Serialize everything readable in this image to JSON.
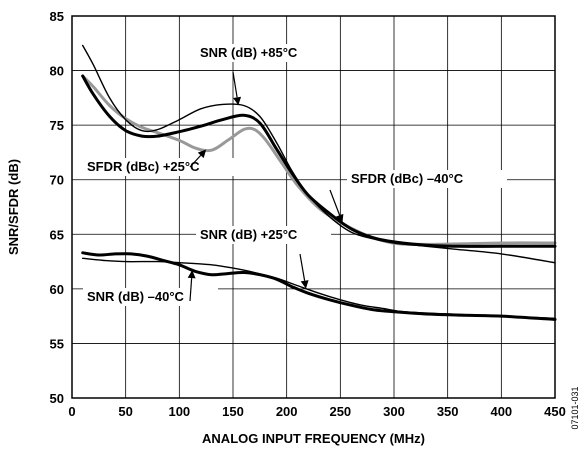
{
  "chart_data": {
    "type": "line",
    "xlabel": "ANALOG INPUT FREQUENCY (MHz)",
    "ylabel": "SNR/SFDR (dB)",
    "xlim": [
      0,
      450
    ],
    "ylim": [
      50,
      85
    ],
    "xticks": [
      0,
      50,
      100,
      150,
      200,
      250,
      300,
      350,
      400,
      450
    ],
    "yticks": [
      50,
      55,
      60,
      65,
      70,
      75,
      80,
      85
    ],
    "grid": true,
    "figure_id": "07101-031",
    "series": [
      {
        "name": "SNR (dB) +85°C",
        "color": "#000000",
        "weight": "thin",
        "x": [
          10,
          20,
          35,
          50,
          65,
          80,
          100,
          120,
          140,
          160,
          175,
          190,
          205,
          220,
          240,
          260,
          280,
          300,
          330,
          360,
          400,
          450
        ],
        "y": [
          82.3,
          80.5,
          77.5,
          75.5,
          74.5,
          74.6,
          75.5,
          76.5,
          76.9,
          76.8,
          75.8,
          73.5,
          70.8,
          68.6,
          66.6,
          65.2,
          64.6,
          64.2,
          63.9,
          63.6,
          63.2,
          62.4
        ]
      },
      {
        "name": "SFDR (dBc) +25°C",
        "color": "#999999",
        "weight": "thick",
        "x": [
          10,
          20,
          35,
          50,
          65,
          80,
          100,
          115,
          130,
          145,
          160,
          170,
          180,
          195,
          210,
          230,
          250,
          270,
          290,
          310,
          350,
          400,
          450
        ],
        "y": [
          79.5,
          78.5,
          76.8,
          75.6,
          74.8,
          74.3,
          73.6,
          72.9,
          72.7,
          73.6,
          74.6,
          74.6,
          73.7,
          71.6,
          69.5,
          67.4,
          66.1,
          65.1,
          64.4,
          64.1,
          64.1,
          64.2,
          64.2
        ]
      },
      {
        "name": "SFDR (dBc) –40°C",
        "color": "#000000",
        "weight": "thick",
        "x": [
          10,
          20,
          35,
          50,
          65,
          80,
          100,
          120,
          140,
          160,
          175,
          190,
          205,
          220,
          240,
          260,
          280,
          300,
          330,
          360,
          400,
          450
        ],
        "y": [
          79.5,
          77.8,
          75.8,
          74.5,
          74.0,
          74.0,
          74.4,
          74.9,
          75.5,
          75.9,
          75.2,
          72.9,
          70.6,
          68.6,
          66.9,
          65.5,
          64.7,
          64.3,
          64.0,
          63.9,
          63.9,
          63.9
        ]
      },
      {
        "name": "SNR (dB) +25°C",
        "color": "#000000",
        "weight": "thin",
        "x": [
          10,
          30,
          50,
          80,
          100,
          130,
          150,
          170,
          190,
          210,
          230,
          250,
          270,
          290,
          310,
          350,
          400,
          450
        ],
        "y": [
          62.8,
          62.6,
          62.5,
          62.5,
          62.4,
          62.2,
          61.9,
          61.5,
          61.0,
          60.3,
          59.6,
          59.0,
          58.5,
          58.2,
          57.9,
          57.7,
          57.5,
          57.3
        ]
      },
      {
        "name": "SNR (dB) –40°C",
        "color": "#000000",
        "weight": "thick",
        "x": [
          10,
          25,
          40,
          55,
          70,
          85,
          100,
          115,
          130,
          145,
          160,
          175,
          190,
          205,
          220,
          240,
          260,
          280,
          300,
          330,
          360,
          400,
          450
        ],
        "y": [
          63.3,
          63.1,
          63.2,
          63.2,
          63.0,
          62.6,
          62.2,
          61.6,
          61.3,
          61.4,
          61.5,
          61.3,
          60.9,
          60.2,
          59.6,
          59.0,
          58.5,
          58.1,
          57.9,
          57.7,
          57.6,
          57.5,
          57.2
        ]
      }
    ],
    "annotations": [
      {
        "text": "SNR (dB) +85°C",
        "series": 0,
        "at_x": 155
      },
      {
        "text": "SFDR (dBc) +25°C",
        "series": 1,
        "at_x": 125
      },
      {
        "text": "SFDR (dBc) –40°C",
        "series": 2,
        "at_x": 252
      },
      {
        "text": "SNR (dB) +25°C",
        "series": 3,
        "at_x": 218
      },
      {
        "text": "SNR (dB) –40°C",
        "series": 4,
        "at_x": 112
      }
    ]
  }
}
